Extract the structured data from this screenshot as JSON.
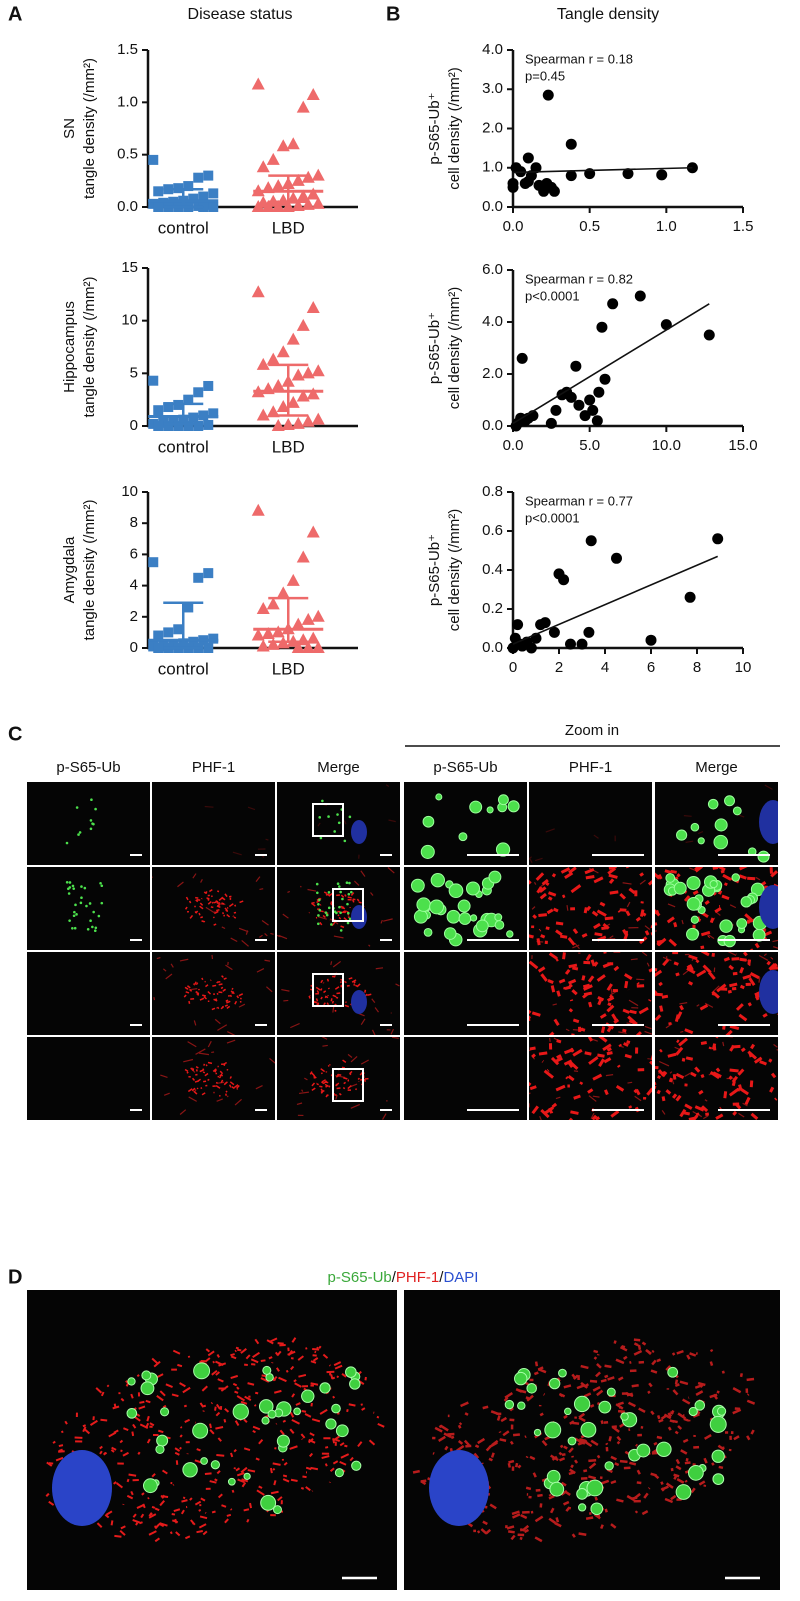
{
  "panel_labels": [
    "A",
    "B",
    "C",
    "D"
  ],
  "column_titles": [
    "Disease status",
    "Tangle density"
  ],
  "chart_data": [
    {
      "type": "strip",
      "categories": [
        "control",
        "LBD"
      ],
      "ylabel": [
        "SN",
        "tangle density (/mm²)"
      ],
      "colors": [
        "#3b7fc4",
        "#ee6a6a"
      ],
      "markers": [
        "square",
        "triangle"
      ],
      "values": [
        [
          0.45,
          0.3,
          0.28,
          0.2,
          0.18,
          0.17,
          0.15,
          0.13,
          0.1,
          0.08,
          0.06,
          0.05,
          0.04,
          0.03,
          0.02,
          0.01,
          0,
          0,
          0,
          0,
          0,
          0
        ],
        [
          1.17,
          1.07,
          0.95,
          0.6,
          0.58,
          0.45,
          0.38,
          0.3,
          0.28,
          0.25,
          0.22,
          0.2,
          0.18,
          0.15,
          0.12,
          0.1,
          0.08,
          0.06,
          0.05,
          0.04,
          0.03,
          0.02,
          0.01,
          0,
          0,
          0,
          0
        ]
      ],
      "medians": [
        0.06,
        0.15
      ],
      "ranges": [
        [
          0,
          0.17
        ],
        [
          0.05,
          0.3
        ]
      ],
      "ylim": [
        0,
        1.5
      ],
      "yticks": [
        {
          "value": 0,
          "label": "0.0"
        },
        0.5,
        {
          "value": 1,
          "label": "1.0"
        },
        1.5
      ]
    },
    {
      "type": "strip",
      "categories": [
        "control",
        "LBD"
      ],
      "ylabel": [
        "Hippocampus",
        "tangle density (/mm²)"
      ],
      "colors": [
        "#3b7fc4",
        "#ee6a6a"
      ],
      "markers": [
        "square",
        "triangle"
      ],
      "values": [
        [
          4.3,
          3.8,
          3.2,
          2.5,
          2.0,
          1.8,
          1.5,
          1.2,
          1.0,
          0.8,
          0.6,
          0.5,
          0.3,
          0.2,
          0.1,
          0,
          0,
          0,
          0,
          0
        ],
        [
          12.7,
          11.2,
          9.5,
          8.2,
          7.0,
          6.3,
          5.8,
          5.2,
          5.0,
          4.8,
          4.2,
          3.8,
          3.5,
          3.2,
          3.0,
          2.8,
          2.2,
          1.8,
          1.3,
          1.0,
          0.6,
          0.4,
          0.2,
          0.1,
          0
        ]
      ],
      "medians": [
        0.9,
        3.3
      ],
      "ranges": [
        [
          0.2,
          2.1
        ],
        [
          1.0,
          5.8
        ]
      ],
      "ylim": [
        0,
        15
      ],
      "yticks": [
        0,
        5,
        10,
        15
      ]
    },
    {
      "type": "strip",
      "categories": [
        "control",
        "LBD"
      ],
      "ylabel": [
        "Amygdala",
        "tangle density (/mm²)"
      ],
      "colors": [
        "#3b7fc4",
        "#ee6a6a"
      ],
      "markers": [
        "square",
        "triangle"
      ],
      "values": [
        [
          5.5,
          4.8,
          4.5,
          2.6,
          1.2,
          1.0,
          0.8,
          0.6,
          0.5,
          0.4,
          0.3,
          0.2,
          0.1,
          0.1,
          0,
          0,
          0,
          0,
          0,
          0
        ],
        [
          8.8,
          7.4,
          5.8,
          4.3,
          3.5,
          2.8,
          2.5,
          2.0,
          1.8,
          1.5,
          1.2,
          1.0,
          0.9,
          0.8,
          0.6,
          0.5,
          0.4,
          0.3,
          0.2,
          0.1,
          0,
          0,
          0
        ]
      ],
      "medians": [
        0.5,
        1.2
      ],
      "ranges": [
        [
          0,
          2.9
        ],
        [
          0.4,
          3.2
        ]
      ],
      "ylim": [
        0,
        10
      ],
      "yticks": [
        0,
        2,
        4,
        6,
        8,
        10
      ]
    },
    {
      "type": "scatter",
      "ylabel": [
        "p-S65-Ub⁺",
        "cell density (/mm²)"
      ],
      "color": "#000000",
      "annotations": [
        "Spearman r = 0.18",
        "p=0.45"
      ],
      "x": [
        0,
        0,
        0.02,
        0.05,
        0.08,
        0.1,
        0.1,
        0.12,
        0.15,
        0.17,
        0.2,
        0.22,
        0.23,
        0.25,
        0.27,
        0.38,
        0.38,
        0.5,
        0.75,
        0.97,
        1.17
      ],
      "values": [
        0.5,
        0.6,
        1.0,
        0.9,
        0.6,
        0.65,
        1.25,
        0.8,
        1.0,
        0.55,
        0.4,
        0.6,
        2.85,
        0.5,
        0.4,
        1.6,
        0.8,
        0.85,
        0.85,
        0.82,
        1.0
      ],
      "trendline": {
        "x": [
          0,
          1.17
        ],
        "values": [
          0.88,
          1.0
        ]
      },
      "xlim": [
        0,
        1.5
      ],
      "xticks": [
        {
          "value": 0,
          "label": "0.0"
        },
        0.5,
        {
          "value": 1,
          "label": "1.0"
        },
        1.5
      ],
      "ylim": [
        0,
        4
      ],
      "yticks": [
        {
          "value": 0,
          "label": "0.0"
        },
        {
          "value": 1,
          "label": "1.0"
        },
        {
          "value": 2,
          "label": "2.0"
        },
        {
          "value": 3,
          "label": "3.0"
        },
        {
          "value": 4,
          "label": "4.0"
        }
      ]
    },
    {
      "type": "scatter",
      "ylabel": [
        "p-S65-Ub⁺",
        "cell density (/mm²)"
      ],
      "color": "#000000",
      "annotations": [
        "Spearman r = 0.82",
        "p<0.0001"
      ],
      "x": [
        0.2,
        0.3,
        0.5,
        0.6,
        0.8,
        1,
        1.3,
        2.5,
        2.8,
        3.2,
        3.5,
        3.8,
        4.1,
        4.3,
        4.7,
        5,
        5.2,
        5.5,
        5.6,
        5.8,
        6,
        6.5,
        8.3,
        10,
        12.8
      ],
      "values": [
        0,
        0.1,
        0.3,
        2.6,
        0.2,
        0.3,
        0.4,
        0.1,
        0.6,
        1.2,
        1.3,
        1.1,
        2.3,
        0.8,
        0.4,
        1.0,
        0.6,
        0.2,
        1.3,
        3.8,
        1.8,
        4.7,
        5.0,
        3.9,
        3.5
      ],
      "trendline": {
        "x": [
          0,
          12.8
        ],
        "values": [
          0.1,
          4.7
        ]
      },
      "xlim": [
        0,
        15
      ],
      "xticks": [
        {
          "value": 0,
          "label": "0.0"
        },
        {
          "value": 5,
          "label": "5.0"
        },
        {
          "value": 10,
          "label": "10.0"
        },
        {
          "value": 15,
          "label": "15.0"
        }
      ],
      "ylim": [
        0,
        6
      ],
      "yticks": [
        {
          "value": 0,
          "label": "0.0"
        },
        {
          "value": 2,
          "label": "2.0"
        },
        {
          "value": 4,
          "label": "4.0"
        },
        {
          "value": 6,
          "label": "6.0"
        }
      ]
    },
    {
      "type": "scatter",
      "ylabel": [
        "p-S65-Ub⁺",
        "cell density (/mm²)"
      ],
      "color": "#000000",
      "annotations": [
        "Spearman r = 0.77",
        "p<0.0001"
      ],
      "x": [
        0,
        0.1,
        0.2,
        0.3,
        0.4,
        0.6,
        0.8,
        1.0,
        1.2,
        1.4,
        1.8,
        2,
        2.2,
        2.5,
        3,
        3.3,
        3.4,
        4.5,
        6,
        7.7,
        8.9
      ],
      "values": [
        0,
        0.05,
        0.12,
        0.02,
        0.01,
        0.03,
        0,
        0.05,
        0.12,
        0.13,
        0.08,
        0.38,
        0.35,
        0.02,
        0.02,
        0.08,
        0.55,
        0.46,
        0.04,
        0.26,
        0.56
      ],
      "trendline": {
        "x": [
          0,
          8.9
        ],
        "values": [
          0.02,
          0.47
        ]
      },
      "xlim": [
        0,
        10
      ],
      "xticks": [
        0,
        2,
        4,
        6,
        8,
        10
      ],
      "ylim": [
        0,
        0.8
      ],
      "yticks": [
        {
          "value": 0,
          "label": "0.0"
        },
        0.2,
        0.4,
        0.6,
        0.8
      ]
    }
  ],
  "panel_c": {
    "zoom_label": "Zoom in",
    "column_headers": [
      "p-S65-Ub",
      "PHF-1",
      "Merge",
      "p-S65-Ub",
      "PHF-1",
      "Merge"
    ]
  },
  "panel_d": {
    "title_parts": [
      {
        "text": "p-S65-Ub",
        "color": "#3aa83a"
      },
      {
        "text": "/",
        "color": "#111111"
      },
      {
        "text": "PHF-1",
        "color": "#e02020"
      },
      {
        "text": "/",
        "color": "#111111"
      },
      {
        "text": "DAPI",
        "color": "#2a4fd0"
      }
    ]
  }
}
